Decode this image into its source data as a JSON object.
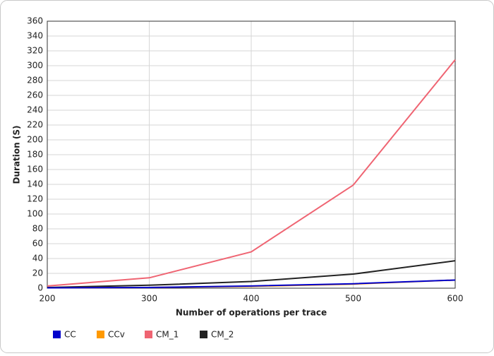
{
  "chart_data": {
    "type": "line",
    "x_label": "Number of operations per trace",
    "y_label": "Duration (S)",
    "x": [
      200,
      300,
      400,
      500,
      600
    ],
    "series": [
      {
        "name": "CC",
        "color": "#0000cc",
        "values": [
          0.5,
          1,
          3,
          6,
          11
        ]
      },
      {
        "name": "CCv",
        "color": "#ff9900",
        "values": [
          0.5,
          1,
          2.5,
          5.5,
          11
        ]
      },
      {
        "name": "CM_1",
        "color": "#ef6472",
        "values": [
          3,
          14,
          49,
          139,
          308
        ]
      },
      {
        "name": "CM_2",
        "color": "#222222",
        "values": [
          1,
          4,
          9,
          19,
          37
        ]
      }
    ],
    "xlim": [
      200,
      600
    ],
    "xticks": [
      200,
      300,
      400,
      500,
      600
    ],
    "ylim": [
      0,
      360
    ],
    "yticks": [
      0,
      20,
      40,
      60,
      80,
      100,
      120,
      140,
      160,
      180,
      200,
      220,
      240,
      260,
      280,
      300,
      320,
      340,
      360
    ],
    "grid": true,
    "legend": "bottom"
  }
}
